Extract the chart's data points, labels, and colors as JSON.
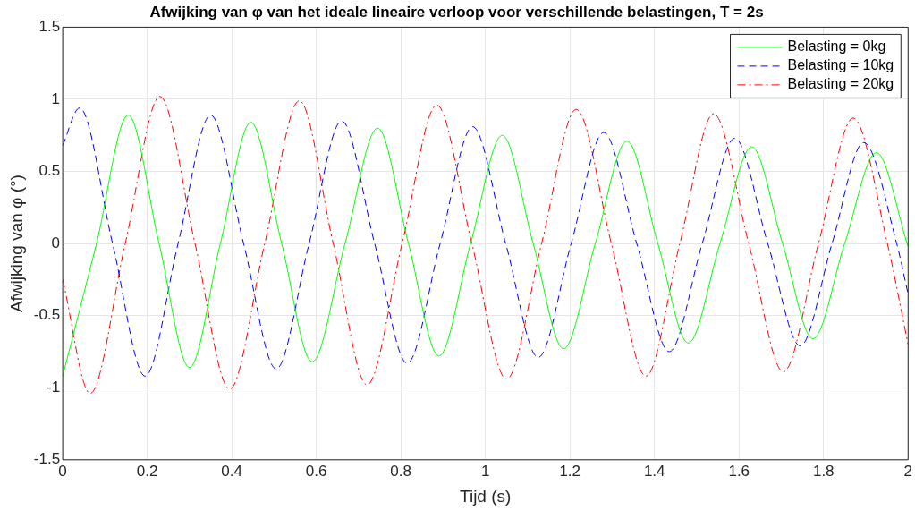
{
  "chart_data": {
    "type": "line",
    "title": "Afwijking van φ van het ideale lineaire verloop voor verschillende belastingen, T = 2s",
    "xlabel": "Tijd (s)",
    "ylabel": "Afwijking van φ (°)",
    "xlim": [
      0,
      2
    ],
    "xticks": [
      0,
      0.2,
      0.4,
      0.6,
      0.8,
      1,
      1.2,
      1.4,
      1.6,
      1.8,
      2
    ],
    "ylim": [
      -1.5,
      1.5
    ],
    "yticks": [
      -1.5,
      -1,
      -0.5,
      0,
      0.5,
      1,
      1.5
    ],
    "grid": true,
    "legend": "top right",
    "marker": "none",
    "series": [
      {
        "name": "Belasting = 0kg",
        "color": "#00ff00",
        "line_style": "solid",
        "x": [
          0,
          0.08,
          0.155,
          0.228,
          0.3,
          0.373,
          0.445,
          0.518,
          0.59,
          0.668,
          0.745,
          0.818,
          0.89,
          0.965,
          1.04,
          1.113,
          1.185,
          1.26,
          1.335,
          1.408,
          1.48,
          1.555,
          1.63,
          1.703,
          1.775,
          1.85,
          1.925,
          2
        ],
        "values": [
          -0.92,
          0,
          0.89,
          0,
          -0.86,
          0,
          0.84,
          0,
          -0.82,
          0,
          0.8,
          0,
          -0.78,
          0,
          0.75,
          0,
          -0.73,
          0,
          0.71,
          0,
          -0.69,
          0,
          0.67,
          0,
          -0.66,
          0,
          0.63,
          -0.02
        ]
      },
      {
        "name": "Belasting = 10kg",
        "color": "#0000ff",
        "line_style": "dashed",
        "x": [
          0,
          0.04,
          0.118,
          0.195,
          0.273,
          0.35,
          0.428,
          0.505,
          0.583,
          0.66,
          0.738,
          0.815,
          0.893,
          0.97,
          1.048,
          1.125,
          1.203,
          1.28,
          1.358,
          1.435,
          1.513,
          1.59,
          1.668,
          1.745,
          1.82,
          1.895,
          1.973,
          2
        ],
        "values": [
          0.68,
          0.94,
          0,
          -0.92,
          0,
          0.89,
          0,
          -0.87,
          0,
          0.85,
          0,
          -0.83,
          0,
          0.81,
          0,
          -0.79,
          0,
          0.77,
          0,
          -0.75,
          0,
          0.73,
          0,
          -0.71,
          0,
          0.7,
          0,
          -0.35
        ]
      },
      {
        "name": "Belasting = 20kg",
        "color": "#ff0000",
        "line_style": "dashdot",
        "x": [
          0,
          0.065,
          0.148,
          0.23,
          0.313,
          0.395,
          0.478,
          0.56,
          0.64,
          0.72,
          0.803,
          0.885,
          0.968,
          1.05,
          1.133,
          1.215,
          1.298,
          1.38,
          1.46,
          1.54,
          1.623,
          1.705,
          1.788,
          1.87,
          1.951,
          2
        ],
        "values": [
          -0.25,
          -1.04,
          0,
          1.02,
          0,
          -1.01,
          0,
          0.99,
          0,
          -0.98,
          0,
          0.96,
          0,
          -0.94,
          0,
          0.93,
          0,
          -0.92,
          0,
          0.9,
          0,
          -0.89,
          0,
          0.87,
          0,
          -0.7
        ]
      }
    ]
  }
}
